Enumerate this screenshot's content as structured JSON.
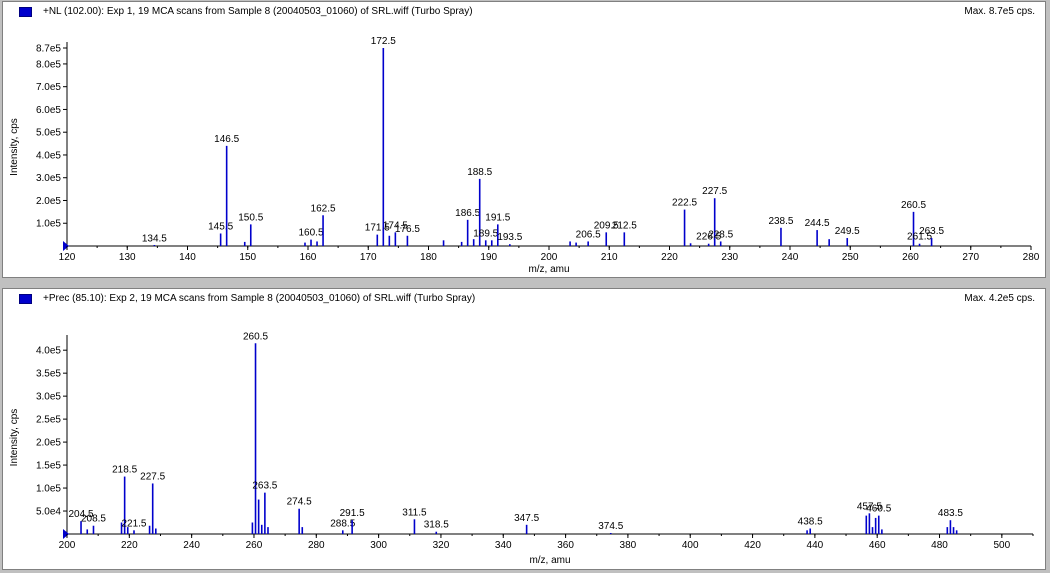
{
  "panels": [
    {
      "title": "+NL (102.00): Exp 1, 19 MCA scans from Sample 8 (20040503_01060) of SRL.wiff (Turbo Spray)",
      "max_label": "Max. 8.7e5 cps."
    },
    {
      "title": "+Prec (85.10): Exp 2, 19 MCA scans from Sample 8 (20040503_01060) of SRL.wiff (Turbo Spray)",
      "max_label": "Max. 4.2e5 cps."
    }
  ],
  "colors": {
    "peak": "#0000cc",
    "marker": "#0000cc",
    "axis": "#000000"
  },
  "chart_data": [
    {
      "type": "bar",
      "xlabel": "m/z, amu",
      "ylabel": "Intensity, cps",
      "xlim": [
        120,
        280
      ],
      "ylim": [
        0,
        870000
      ],
      "x_ticks": [
        "120",
        "130",
        "140",
        "150",
        "160",
        "170",
        "180",
        "190",
        "200",
        "210",
        "220",
        "230",
        "240",
        "250",
        "260",
        "270",
        "280"
      ],
      "y_ticks": [
        {
          "v": 100000,
          "label": "1.0e5"
        },
        {
          "v": 200000,
          "label": "2.0e5"
        },
        {
          "v": 300000,
          "label": "3.0e5"
        },
        {
          "v": 400000,
          "label": "4.0e5"
        },
        {
          "v": 500000,
          "label": "5.0e5"
        },
        {
          "v": 600000,
          "label": "6.0e5"
        },
        {
          "v": 700000,
          "label": "7.0e5"
        },
        {
          "v": 800000,
          "label": "8.0e5"
        },
        {
          "v": 870000,
          "label": "8.7e5"
        }
      ],
      "peaks": [
        {
          "x": 134.5,
          "y": 2000,
          "label": "134.5"
        },
        {
          "x": 145.5,
          "y": 55000,
          "label": "145.5"
        },
        {
          "x": 146.5,
          "y": 440000,
          "label": "146.5"
        },
        {
          "x": 149.5,
          "y": 18000
        },
        {
          "x": 150.5,
          "y": 95000,
          "label": "150.5"
        },
        {
          "x": 159.5,
          "y": 15000
        },
        {
          "x": 160.5,
          "y": 28000,
          "label": "160.5"
        },
        {
          "x": 161.5,
          "y": 20000
        },
        {
          "x": 162.5,
          "y": 135000,
          "label": "162.5"
        },
        {
          "x": 171.5,
          "y": 50000,
          "label": "171.5"
        },
        {
          "x": 172.5,
          "y": 870000,
          "label": "172.5"
        },
        {
          "x": 173.5,
          "y": 45000
        },
        {
          "x": 174.5,
          "y": 60000,
          "label": "174.5"
        },
        {
          "x": 176.5,
          "y": 45000,
          "label": "176.5"
        },
        {
          "x": 182.5,
          "y": 25000
        },
        {
          "x": 185.5,
          "y": 18000
        },
        {
          "x": 186.5,
          "y": 115000,
          "label": "186.5"
        },
        {
          "x": 187.5,
          "y": 30000
        },
        {
          "x": 188.5,
          "y": 295000,
          "label": "188.5"
        },
        {
          "x": 189.5,
          "y": 25000,
          "label": "189.5"
        },
        {
          "x": 190.5,
          "y": 25000
        },
        {
          "x": 191.5,
          "y": 95000,
          "label": "191.5"
        },
        {
          "x": 193.5,
          "y": 8000,
          "label": "193.5"
        },
        {
          "x": 203.5,
          "y": 20000
        },
        {
          "x": 204.5,
          "y": 15000
        },
        {
          "x": 206.5,
          "y": 20000,
          "label": "206.5"
        },
        {
          "x": 209.5,
          "y": 60000,
          "label": "209.5"
        },
        {
          "x": 212.5,
          "y": 60000,
          "label": "212.5"
        },
        {
          "x": 222.5,
          "y": 160000,
          "label": "222.5"
        },
        {
          "x": 223.5,
          "y": 12000
        },
        {
          "x": 226.5,
          "y": 10000,
          "label": "226.5"
        },
        {
          "x": 227.5,
          "y": 210000,
          "label": "227.5"
        },
        {
          "x": 228.5,
          "y": 20000,
          "label": "228.5"
        },
        {
          "x": 238.5,
          "y": 80000,
          "label": "238.5"
        },
        {
          "x": 244.5,
          "y": 70000,
          "label": "244.5"
        },
        {
          "x": 246.5,
          "y": 30000
        },
        {
          "x": 249.5,
          "y": 35000,
          "label": "249.5"
        },
        {
          "x": 260.5,
          "y": 150000,
          "label": "260.5"
        },
        {
          "x": 261.5,
          "y": 10000,
          "label": "261.5"
        },
        {
          "x": 263.5,
          "y": 35000,
          "label": "263.5"
        }
      ]
    },
    {
      "type": "bar",
      "xlabel": "m/z, amu",
      "ylabel": "Intensity, cps",
      "xlim": [
        200,
        510
      ],
      "ylim": [
        0,
        420000
      ],
      "x_ticks": [
        "200",
        "220",
        "240",
        "260",
        "280",
        "300",
        "320",
        "340",
        "360",
        "380",
        "400",
        "420",
        "440",
        "460",
        "480",
        "500"
      ],
      "y_ticks": [
        {
          "v": 50000,
          "label": "5.0e4"
        },
        {
          "v": 100000,
          "label": "1.0e5"
        },
        {
          "v": 150000,
          "label": "1.5e5"
        },
        {
          "v": 200000,
          "label": "2.0e5"
        },
        {
          "v": 250000,
          "label": "2.5e5"
        },
        {
          "v": 300000,
          "label": "3.0e5"
        },
        {
          "v": 350000,
          "label": "3.5e5"
        },
        {
          "v": 400000,
          "label": "4.0e5"
        }
      ],
      "peaks": [
        {
          "x": 204.5,
          "y": 28000,
          "label": "204.5"
        },
        {
          "x": 206.5,
          "y": 10000
        },
        {
          "x": 208.5,
          "y": 18000,
          "label": "208.5"
        },
        {
          "x": 217.5,
          "y": 25000
        },
        {
          "x": 218.5,
          "y": 125000,
          "label": "218.5"
        },
        {
          "x": 219.5,
          "y": 15000
        },
        {
          "x": 221.5,
          "y": 8000,
          "label": "221.5"
        },
        {
          "x": 226.5,
          "y": 18000
        },
        {
          "x": 227.5,
          "y": 110000,
          "label": "227.5"
        },
        {
          "x": 228.5,
          "y": 12000
        },
        {
          "x": 259.5,
          "y": 25000
        },
        {
          "x": 260.5,
          "y": 415000,
          "label": "260.5"
        },
        {
          "x": 261.5,
          "y": 75000
        },
        {
          "x": 262.5,
          "y": 20000
        },
        {
          "x": 263.5,
          "y": 90000,
          "label": "263.5"
        },
        {
          "x": 264.5,
          "y": 15000
        },
        {
          "x": 274.5,
          "y": 55000,
          "label": "274.5"
        },
        {
          "x": 275.5,
          "y": 15000
        },
        {
          "x": 288.5,
          "y": 8000,
          "label": "288.5"
        },
        {
          "x": 291.5,
          "y": 30000,
          "label": "291.5"
        },
        {
          "x": 311.5,
          "y": 32000,
          "label": "311.5"
        },
        {
          "x": 318.5,
          "y": 5000,
          "label": "318.5"
        },
        {
          "x": 347.5,
          "y": 20000,
          "label": "347.5"
        },
        {
          "x": 374.5,
          "y": 2000,
          "label": "374.5"
        },
        {
          "x": 437.5,
          "y": 8000
        },
        {
          "x": 438.5,
          "y": 12000,
          "label": "438.5"
        },
        {
          "x": 456.5,
          "y": 40000
        },
        {
          "x": 457.5,
          "y": 45000,
          "label": "457.5"
        },
        {
          "x": 458.5,
          "y": 15000
        },
        {
          "x": 459.5,
          "y": 35000
        },
        {
          "x": 460.5,
          "y": 40000,
          "label": "460.5"
        },
        {
          "x": 461.5,
          "y": 10000
        },
        {
          "x": 482.5,
          "y": 15000
        },
        {
          "x": 483.5,
          "y": 30000,
          "label": "483.5"
        },
        {
          "x": 484.5,
          "y": 15000
        },
        {
          "x": 485.5,
          "y": 8000
        }
      ]
    }
  ]
}
